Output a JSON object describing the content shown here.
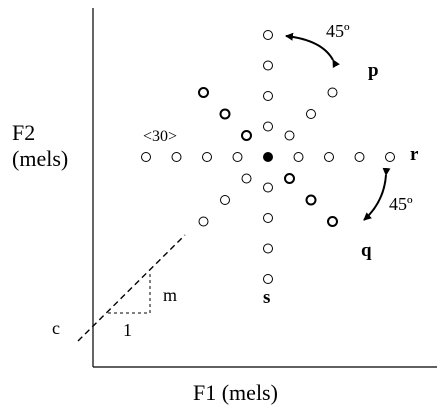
{
  "axes": {
    "x_label": "F1 (mels)",
    "y_label_line1": "F2",
    "y_label_line2": "(mels)"
  },
  "direction_labels": {
    "p": "p",
    "q": "q",
    "r": "r",
    "s": "s"
  },
  "annotations": {
    "angle_top": "45º",
    "angle_bottom": "45º",
    "spacing": "<30>",
    "intercept": "c",
    "slope": "m",
    "run": "1"
  },
  "rays": [
    {
      "name": "up",
      "dir": "up",
      "count": 4,
      "heavy": false
    },
    {
      "name": "down",
      "dir": "down",
      "count": 4,
      "heavy": false
    },
    {
      "name": "left",
      "dir": "left",
      "count": 4,
      "heavy": false
    },
    {
      "name": "right",
      "dir": "right",
      "count": 4,
      "heavy": false
    },
    {
      "name": "up-right",
      "dir": "up-right",
      "count": 3,
      "heavy": false
    },
    {
      "name": "up-left",
      "dir": "up-left",
      "count": 3,
      "heavy": true
    },
    {
      "name": "down-right",
      "dir": "down-right",
      "count": 3,
      "heavy": true
    },
    {
      "name": "down-left",
      "dir": "down-left",
      "count": 3,
      "heavy": false
    }
  ],
  "colors": {
    "ink": "#000000",
    "background": "#ffffff"
  }
}
